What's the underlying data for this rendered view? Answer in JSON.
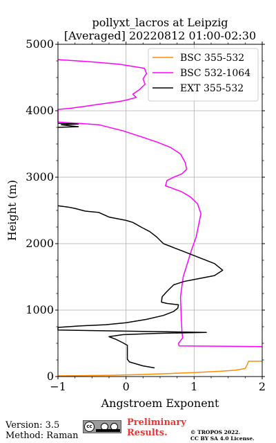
{
  "chart_data": {
    "type": "line",
    "title": [
      "pollyxt_lacros at Leipzig",
      "[Averaged] 20220812 01:00-02:30"
    ],
    "xlabel": "Angstroem Exponent",
    "ylabel": "Height (m)",
    "xlim": [
      -1,
      2
    ],
    "ylim": [
      0,
      5000
    ],
    "xticks": [
      -1,
      0,
      1,
      2
    ],
    "xticklabels": [
      "−1",
      "0",
      "1",
      "2"
    ],
    "yticks": [
      0,
      1000,
      2000,
      3000,
      4000,
      5000
    ],
    "yticklabels": [
      "0",
      "1000",
      "2000",
      "3000",
      "4000",
      "5000"
    ],
    "grid": true,
    "legend_position": "top-right",
    "series": [
      {
        "name": "BSC 355-532",
        "color": "#ff8c00",
        "points": [
          [
            -1.0,
            10
          ],
          [
            -0.6,
            15
          ],
          [
            -0.2,
            20
          ],
          [
            0.2,
            30
          ],
          [
            0.6,
            45
          ],
          [
            1.0,
            60
          ],
          [
            1.4,
            80
          ],
          [
            1.6,
            95
          ],
          [
            1.75,
            120
          ],
          [
            1.78,
            180
          ],
          [
            1.8,
            230
          ],
          [
            2.0,
            230
          ]
        ]
      },
      {
        "name": "BSC 532-1064",
        "color": "#ff00ff",
        "points": [
          [
            2.0,
            450
          ],
          [
            1.5,
            455
          ],
          [
            0.78,
            460
          ],
          [
            0.77,
            500
          ],
          [
            0.8,
            540
          ],
          [
            0.83,
            580
          ],
          [
            0.82,
            700
          ],
          [
            0.81,
            900
          ],
          [
            0.8,
            1200
          ],
          [
            0.84,
            1500
          ],
          [
            0.9,
            1700
          ],
          [
            0.96,
            1900
          ],
          [
            1.03,
            2100
          ],
          [
            1.07,
            2300
          ],
          [
            1.1,
            2450
          ],
          [
            1.05,
            2600
          ],
          [
            0.95,
            2700
          ],
          [
            0.82,
            2780
          ],
          [
            0.69,
            2830
          ],
          [
            0.58,
            2870
          ],
          [
            0.6,
            2950
          ],
          [
            0.7,
            3000
          ],
          [
            0.82,
            3050
          ],
          [
            0.89,
            3120
          ],
          [
            0.87,
            3220
          ],
          [
            0.8,
            3350
          ],
          [
            0.65,
            3450
          ],
          [
            0.45,
            3530
          ],
          [
            0.25,
            3600
          ],
          [
            -0.05,
            3700
          ],
          [
            -0.4,
            3790
          ],
          [
            -0.7,
            3810
          ],
          [
            -1.0,
            3830
          ],
          [
            -1.0,
            4020
          ],
          [
            -0.8,
            4040
          ],
          [
            -0.45,
            4090
          ],
          [
            -0.1,
            4140
          ],
          [
            0.0,
            4160
          ],
          [
            0.15,
            4200
          ],
          [
            0.1,
            4250
          ],
          [
            0.2,
            4320
          ],
          [
            0.28,
            4400
          ],
          [
            0.25,
            4480
          ],
          [
            0.3,
            4560
          ],
          [
            0.27,
            4640
          ],
          [
            -0.1,
            4700
          ],
          [
            -0.55,
            4740
          ],
          [
            -1.0,
            4770
          ]
        ]
      },
      {
        "name": "EXT 355-532",
        "color": "#000000",
        "points": [
          [
            0.42,
            130
          ],
          [
            0.25,
            160
          ],
          [
            0.05,
            220
          ],
          [
            0.02,
            260
          ],
          [
            0.02,
            470
          ],
          [
            -0.05,
            510
          ],
          [
            -0.15,
            560
          ],
          [
            -0.25,
            600
          ],
          [
            -0.05,
            630
          ],
          [
            0.45,
            650
          ],
          [
            1.18,
            665
          ],
          [
            -1.0,
            700
          ],
          [
            -1.0,
            740
          ],
          [
            -0.7,
            760
          ],
          [
            -0.3,
            780
          ],
          [
            0.0,
            810
          ],
          [
            0.3,
            860
          ],
          [
            0.55,
            920
          ],
          [
            0.7,
            980
          ],
          [
            0.76,
            1030
          ],
          [
            0.77,
            1080
          ],
          [
            0.6,
            1100
          ],
          [
            0.52,
            1120
          ],
          [
            0.53,
            1200
          ],
          [
            0.6,
            1280
          ],
          [
            0.7,
            1380
          ],
          [
            0.85,
            1430
          ],
          [
            1.05,
            1470
          ],
          [
            1.3,
            1520
          ],
          [
            1.42,
            1600
          ],
          [
            1.3,
            1700
          ],
          [
            1.05,
            1800
          ],
          [
            0.8,
            1900
          ],
          [
            0.55,
            2000
          ],
          [
            0.45,
            2100
          ],
          [
            0.35,
            2180
          ],
          [
            0.22,
            2250
          ],
          [
            0.1,
            2320
          ],
          [
            0.0,
            2350
          ],
          [
            -0.25,
            2400
          ],
          [
            -0.4,
            2470
          ],
          [
            -0.6,
            2490
          ],
          [
            -0.75,
            2530
          ],
          [
            -0.85,
            2550
          ],
          [
            -1.0,
            2570
          ]
        ]
      },
      {
        "name": "EXT 355-532",
        "show_in_legend": false,
        "color": "#000000",
        "points": [
          [
            -1.0,
            3750
          ],
          [
            -0.7,
            3760
          ],
          [
            -0.8,
            3770
          ],
          [
            -0.95,
            3790
          ],
          [
            -0.7,
            3800
          ],
          [
            -1.0,
            3810
          ]
        ]
      }
    ]
  },
  "footer": {
    "version": "Version: 3.5",
    "method": "Method: Raman",
    "preliminary": [
      "Preliminary",
      "Results."
    ],
    "copyright": [
      "© TROPOS 2022.",
      "CC BY SA 4.0 License."
    ],
    "license_badge": [
      "cc",
      "BY",
      "SA"
    ]
  }
}
